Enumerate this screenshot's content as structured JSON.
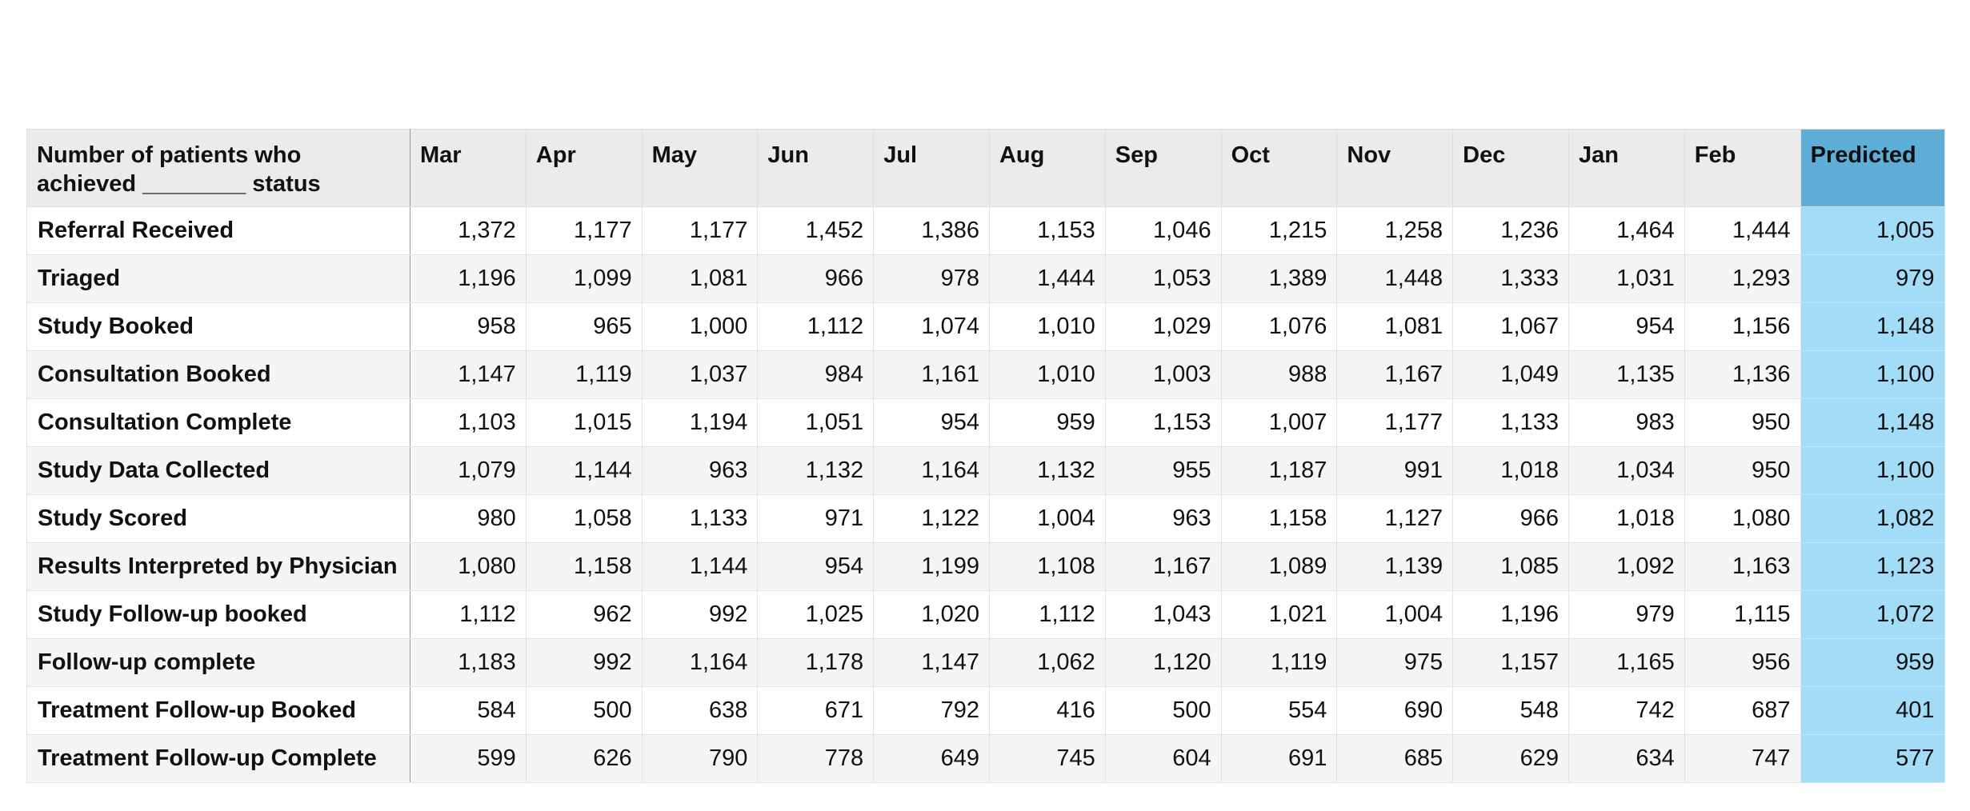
{
  "table": {
    "corner_label": "Number of patients who achieved ________ status",
    "months": [
      "Mar",
      "Apr",
      "May",
      "Jun",
      "Jul",
      "Aug",
      "Sep",
      "Oct",
      "Nov",
      "Dec",
      "Jan",
      "Feb"
    ],
    "predicted_label": "Predicted",
    "rows": [
      {
        "label": "Referral Received",
        "values": [
          "1,372",
          "1,177",
          "1,177",
          "1,452",
          "1,386",
          "1,153",
          "1,046",
          "1,215",
          "1,258",
          "1,236",
          "1,464",
          "1,444"
        ],
        "predicted": "1,005"
      },
      {
        "label": "Triaged",
        "values": [
          "1,196",
          "1,099",
          "1,081",
          "966",
          "978",
          "1,444",
          "1,053",
          "1,389",
          "1,448",
          "1,333",
          "1,031",
          "1,293"
        ],
        "predicted": "979"
      },
      {
        "label": "Study Booked",
        "values": [
          "958",
          "965",
          "1,000",
          "1,112",
          "1,074",
          "1,010",
          "1,029",
          "1,076",
          "1,081",
          "1,067",
          "954",
          "1,156"
        ],
        "predicted": "1,148"
      },
      {
        "label": "Consultation Booked",
        "values": [
          "1,147",
          "1,119",
          "1,037",
          "984",
          "1,161",
          "1,010",
          "1,003",
          "988",
          "1,167",
          "1,049",
          "1,135",
          "1,136"
        ],
        "predicted": "1,100"
      },
      {
        "label": "Consultation Complete",
        "values": [
          "1,103",
          "1,015",
          "1,194",
          "1,051",
          "954",
          "959",
          "1,153",
          "1,007",
          "1,177",
          "1,133",
          "983",
          "950"
        ],
        "predicted": "1,148"
      },
      {
        "label": "Study Data Collected",
        "values": [
          "1,079",
          "1,144",
          "963",
          "1,132",
          "1,164",
          "1,132",
          "955",
          "1,187",
          "991",
          "1,018",
          "1,034",
          "950"
        ],
        "predicted": "1,100"
      },
      {
        "label": "Study Scored",
        "values": [
          "980",
          "1,058",
          "1,133",
          "971",
          "1,122",
          "1,004",
          "963",
          "1,158",
          "1,127",
          "966",
          "1,018",
          "1,080"
        ],
        "predicted": "1,082"
      },
      {
        "label": "Results Interpreted by Physician",
        "values": [
          "1,080",
          "1,158",
          "1,144",
          "954",
          "1,199",
          "1,108",
          "1,167",
          "1,089",
          "1,139",
          "1,085",
          "1,092",
          "1,163"
        ],
        "predicted": "1,123"
      },
      {
        "label": "Study Follow-up booked",
        "values": [
          "1,112",
          "962",
          "992",
          "1,025",
          "1,020",
          "1,112",
          "1,043",
          "1,021",
          "1,004",
          "1,196",
          "979",
          "1,115"
        ],
        "predicted": "1,072"
      },
      {
        "label": "Follow-up complete",
        "values": [
          "1,183",
          "992",
          "1,164",
          "1,178",
          "1,147",
          "1,062",
          "1,120",
          "1,119",
          "975",
          "1,157",
          "1,165",
          "956"
        ],
        "predicted": "959"
      },
      {
        "label": "Treatment Follow-up Booked",
        "values": [
          "584",
          "500",
          "638",
          "671",
          "792",
          "416",
          "500",
          "554",
          "690",
          "548",
          "742",
          "687"
        ],
        "predicted": "401"
      },
      {
        "label": "Treatment Follow-up Complete",
        "values": [
          "599",
          "626",
          "790",
          "778",
          "649",
          "745",
          "604",
          "691",
          "685",
          "629",
          "634",
          "747"
        ],
        "predicted": "577"
      }
    ]
  },
  "colors": {
    "header_bg": "#ebebeb",
    "predicted_header_bg": "#5eaed8",
    "predicted_cell_bg": "#a3dcf6",
    "stripe_bg": "#f5f5f4"
  }
}
